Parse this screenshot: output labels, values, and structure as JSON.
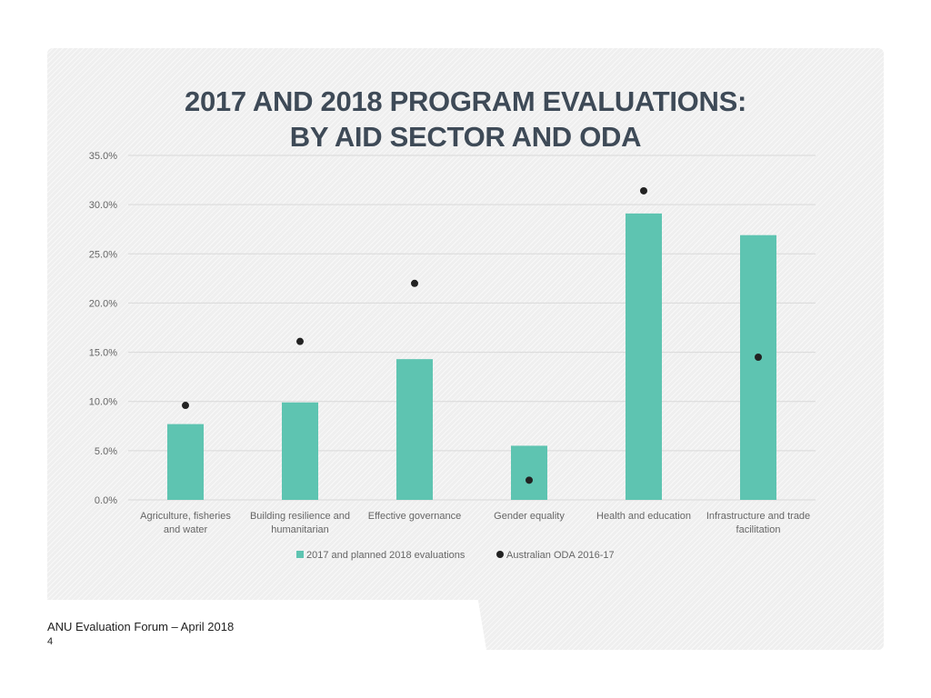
{
  "slide": {
    "footer": "ANU Evaluation Forum – April 2018",
    "page_number": "4"
  },
  "colors": {
    "bar": "#5ec4b1",
    "dot": "#222222",
    "grid": "#d9d9d9",
    "title": "#3e4a57"
  },
  "chart_data": {
    "type": "bar",
    "title_lines": [
      "2017 AND 2018 PROGRAM EVALUATIONS:",
      "BY AID SECTOR AND ODA"
    ],
    "categories": [
      [
        "Agriculture, fisheries",
        "and water"
      ],
      [
        "Building resilience and",
        "humanitarian"
      ],
      [
        "Effective governance"
      ],
      [
        "Gender equality"
      ],
      [
        "Health and education"
      ],
      [
        "Infrastructure and trade",
        "facilitation"
      ]
    ],
    "series": [
      {
        "name": "2017 and planned 2018 evaluations",
        "kind": "bar",
        "values": [
          7.7,
          9.9,
          14.3,
          5.5,
          29.1,
          26.9
        ]
      },
      {
        "name": "Australian ODA 2016-17",
        "kind": "marker",
        "values": [
          9.6,
          16.1,
          22.0,
          2.0,
          31.4,
          14.5
        ]
      }
    ],
    "y_ticks": [
      "0.0%",
      "5.0%",
      "10.0%",
      "15.0%",
      "20.0%",
      "25.0%",
      "30.0%",
      "35.0%"
    ],
    "ylim": [
      0,
      35
    ],
    "grid": true,
    "legend_position": "bottom"
  }
}
